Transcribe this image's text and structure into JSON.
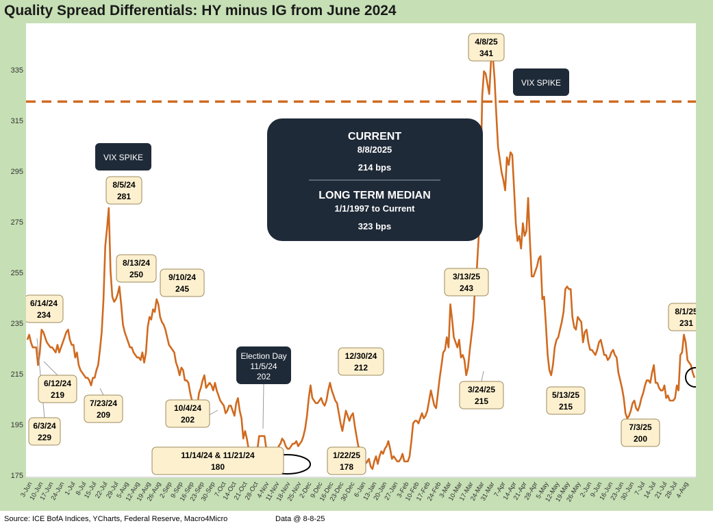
{
  "title": "Quality Spread Differentials: HY minus IG from June 2024",
  "footer": {
    "source": "Source: ICE BofA Indices, YCharts, Federal Reserve, Macro4Micro",
    "data_date": "Data @ 8-8-25"
  },
  "colors": {
    "line": "#d06a1f",
    "median_line": "#d06a1f",
    "frame": "#c6dfb5",
    "label_fill": "#fdf0cf",
    "dark_box": "#1f2a38"
  },
  "info_box": {
    "current_title": "CURRENT",
    "current_date": "8/8/2025",
    "current_value": "214 bps",
    "median_title": "LONG TERM MEDIAN",
    "median_range": "1/1/1997 to Current",
    "median_value": "323 bps"
  },
  "chart_data": {
    "type": "line",
    "title": "Quality Spread Differentials: HY minus IG from June 2024",
    "ylim": [
      175,
      345
    ],
    "y_ticks": [
      175,
      195,
      215,
      235,
      255,
      275,
      295,
      315,
      335
    ],
    "grid": false,
    "x_labels": [
      "3-Jun",
      "10-Jun",
      "17-Jun",
      "24-Jun",
      "1-Jul",
      "8-Jul",
      "15-Jul",
      "22-Jul",
      "29-Jul",
      "5-Aug",
      "12-Aug",
      "19-Aug",
      "26-Aug",
      "2-Sep",
      "9-Sep",
      "16-Sep",
      "23-Sep",
      "30-Sep",
      "7-Oct",
      "14-Oct",
      "21-Oct",
      "28-Oct",
      "4-Nov",
      "11-Nov",
      "18-Nov",
      "25-Nov",
      "2-Dec",
      "9-Dec",
      "16-Dec",
      "23-Dec",
      "30-Dec",
      "6-Jan",
      "13-Jan",
      "20-Jan",
      "27-Jan",
      "3-Feb",
      "10-Feb",
      "17-Feb",
      "24-Feb",
      "3-Mar",
      "10-Mar",
      "17-Mar",
      "24-Mar",
      "31-Mar",
      "7-Apr",
      "14-Apr",
      "21-Apr",
      "28-Apr",
      "5-May",
      "12-May",
      "19-May",
      "26-May",
      "2-Jun",
      "9-Jun",
      "16-Jun",
      "23-Jun",
      "30-Jun",
      "7-Jul",
      "14-Jul",
      "21-Jul",
      "28-Jul",
      "4-Aug"
    ],
    "series": [
      {
        "values": [
          229,
          231,
          228,
          226,
          226,
          226,
          219,
          224,
          233,
          232,
          230,
          228,
          227,
          226,
          226,
          225,
          224,
          227,
          224,
          226,
          228,
          230,
          232,
          233,
          229,
          227,
          227,
          222,
          224,
          219,
          217,
          216,
          215,
          214,
          214,
          213,
          211,
          214,
          214,
          217,
          219,
          225,
          232,
          245,
          266,
          273,
          281,
          256,
          246,
          244,
          245,
          247,
          250,
          243,
          235,
          232,
          230,
          228,
          226,
          226,
          224,
          223,
          222,
          222,
          221,
          224,
          220,
          224,
          234,
          238,
          237,
          241,
          240,
          245,
          243,
          238,
          236,
          235,
          233,
          230,
          227,
          226,
          225,
          224,
          220,
          218,
          215,
          218,
          217,
          213,
          213,
          212,
          208,
          205,
          202,
          202,
          203,
          208,
          210,
          213,
          215,
          210,
          211,
          212,
          211,
          209,
          212,
          209,
          207,
          205,
          204,
          203,
          200,
          201,
          203,
          203,
          201,
          199,
          204,
          206,
          201,
          198,
          190,
          193,
          190,
          186,
          184,
          186,
          182,
          181,
          186,
          191,
          191,
          191,
          191,
          186,
          183,
          180,
          181,
          182,
          183,
          184,
          187,
          188,
          190,
          189,
          187,
          186,
          186,
          187,
          188,
          188,
          189,
          187,
          188,
          189,
          191,
          194,
          199,
          206,
          211,
          206,
          205,
          204,
          204,
          205,
          206,
          204,
          203,
          205,
          209,
          212,
          209,
          207,
          205,
          204,
          200,
          196,
          193,
          197,
          201,
          199,
          197,
          199,
          200,
          195,
          191,
          187,
          186,
          185,
          183,
          180,
          181,
          182,
          179,
          178,
          181,
          183,
          180,
          183,
          185,
          184,
          186,
          187,
          189,
          186,
          182,
          183,
          182,
          181,
          181,
          182,
          184,
          181,
          181,
          181,
          183,
          189,
          196,
          197,
          197,
          196,
          198,
          200,
          198,
          199,
          201,
          205,
          209,
          206,
          203,
          202,
          208,
          214,
          219,
          224,
          225,
          230,
          226,
          243,
          237,
          230,
          228,
          226,
          229,
          222,
          223,
          221,
          215,
          218,
          225,
          231,
          237,
          250,
          257,
          269,
          286,
          325,
          335,
          334,
          330,
          326,
          339,
          341,
          332,
          318,
          305,
          300,
          295,
          292,
          288,
          301,
          298,
          303,
          302,
          289,
          275,
          268,
          270,
          265,
          275,
          270,
          272,
          285,
          268,
          254,
          254,
          256,
          258,
          261,
          262,
          245,
          246,
          235,
          223,
          217,
          215,
          219,
          226,
          229,
          230,
          233,
          236,
          240,
          249,
          250,
          249,
          249,
          238,
          234,
          233,
          238,
          237,
          236,
          228,
          232,
          233,
          228,
          225,
          225,
          224,
          223,
          225,
          228,
          229,
          226,
          223,
          223,
          221,
          222,
          224,
          225,
          223,
          222,
          216,
          213,
          210,
          206,
          200,
          198,
          199,
          201,
          204,
          205,
          202,
          201,
          203,
          206,
          208,
          211,
          213,
          213,
          212,
          216,
          219,
          212,
          212,
          210,
          209,
          209,
          211,
          206,
          207,
          205,
          205,
          205,
          206,
          211,
          209,
          223,
          224,
          231,
          228,
          221,
          220,
          219,
          216,
          214
        ]
      }
    ],
    "reference_line": {
      "value": 323,
      "label": "LONG TERM MEDIAN"
    },
    "annotations": [
      {
        "date": "6/3/24",
        "value": "229"
      },
      {
        "date": "6/12/24",
        "value": "219"
      },
      {
        "date": "6/14/24",
        "value": "234"
      },
      {
        "date": "7/23/24",
        "value": "209"
      },
      {
        "date": "8/5/24",
        "value": "281"
      },
      {
        "date": "8/13/24",
        "value": "250"
      },
      {
        "date": "9/10/24",
        "value": "245"
      },
      {
        "date": "10/4/24",
        "value": "202"
      },
      {
        "date": "Election Day 11/5/24",
        "value": "202"
      },
      {
        "date": "11/14/24 & 11/21/24",
        "value": "180"
      },
      {
        "date": "12/30/24",
        "value": "212"
      },
      {
        "date": "1/22/25",
        "value": "178"
      },
      {
        "date": "3/13/25",
        "value": "243"
      },
      {
        "date": "3/24/25",
        "value": "215"
      },
      {
        "date": "4/8/25",
        "value": "341"
      },
      {
        "date": "5/13/25",
        "value": "215"
      },
      {
        "date": "7/3/25",
        "value": "200"
      },
      {
        "date": "8/1/25",
        "value": "231"
      }
    ],
    "callouts": [
      "VIX SPIKE",
      "VIX SPIKE"
    ]
  }
}
